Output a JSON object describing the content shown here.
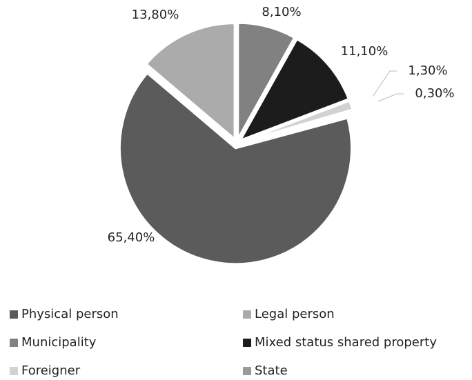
{
  "chart_data": {
    "type": "pie",
    "categories": [
      "Physical person",
      "Legal person",
      "Municipality",
      "Mixed status shared property",
      "Foreigner",
      "State"
    ],
    "values": [
      65.4,
      13.8,
      8.1,
      11.1,
      1.3,
      0.3
    ],
    "value_labels": [
      "65,40%",
      "13,80%",
      "8,10%",
      "11,10%",
      "1,30%",
      "0,30%"
    ],
    "colors": [
      "#5b5b5b",
      "#ababab",
      "#818181",
      "#1c1c1c",
      "#d2d2d2",
      "#9a9a9a"
    ],
    "legend": "bottom"
  }
}
